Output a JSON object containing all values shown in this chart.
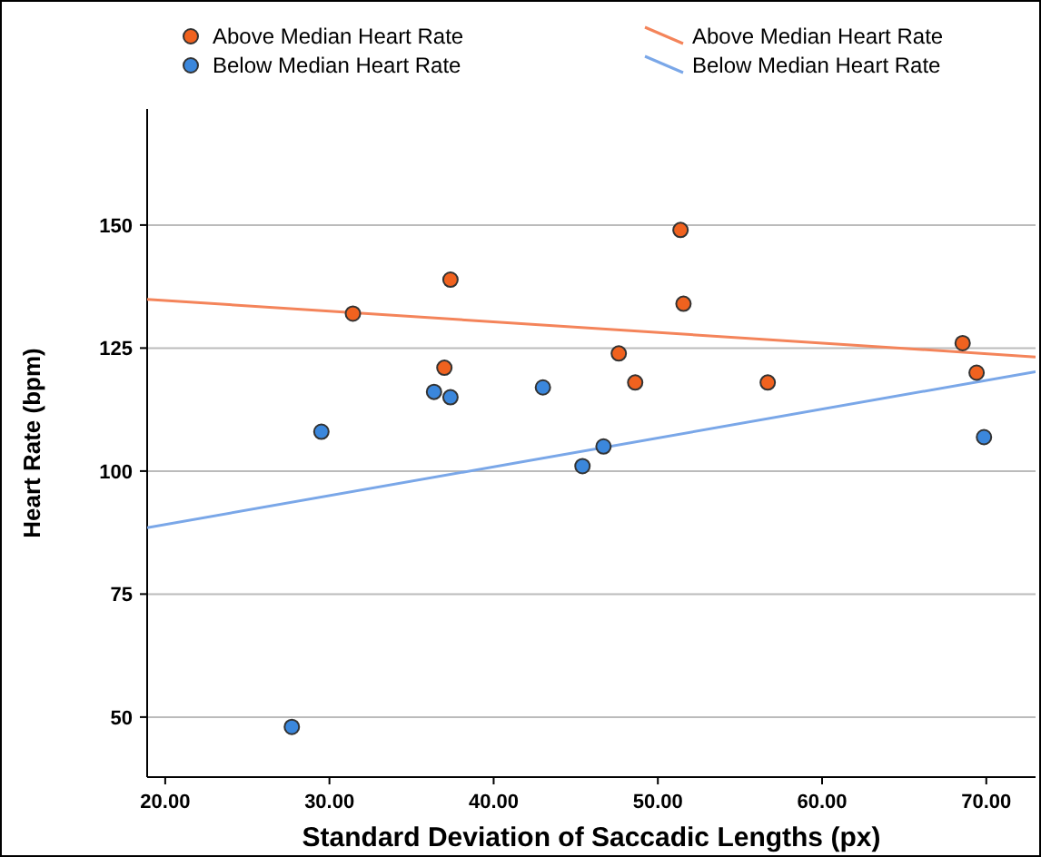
{
  "chart_data": {
    "type": "scatter",
    "xlabel": "Standard Deviation of Saccadic Lengths (px)",
    "ylabel": "Heart Rate (bpm)",
    "xlim": [
      18.9,
      73
    ],
    "xticks": [
      {
        "value": 20,
        "label": "20.00"
      },
      {
        "value": 30,
        "label": "30.00"
      },
      {
        "value": 40,
        "label": "40.00"
      },
      {
        "value": 50,
        "label": "50.00"
      },
      {
        "value": 60,
        "label": "60.00"
      },
      {
        "value": 70,
        "label": "70.00"
      }
    ],
    "ylim": [
      37.8,
      173.6
    ],
    "yticks": [
      50,
      75,
      100,
      125,
      150
    ],
    "grid": "y",
    "legend": "top",
    "marker": "circle",
    "series": [
      {
        "name": "Above Median Heart Rate",
        "color": "#f0621f",
        "x": [
          31.43,
          37.37,
          37.0,
          51.38,
          51.56,
          47.62,
          48.62,
          56.69,
          68.56,
          69.41
        ],
        "values": [
          132.0,
          138.9,
          121.0,
          149.0,
          134.0,
          123.9,
          118.0,
          118.0,
          126.0,
          120.0
        ]
      },
      {
        "name": "Below Median Heart Rate",
        "color": "#3b87dc",
        "x": [
          36.37,
          37.37,
          29.51,
          43.0,
          45.41,
          46.69,
          69.86,
          27.71
        ],
        "values": [
          116.1,
          115.0,
          108.0,
          117.0,
          101.0,
          105.0,
          106.9,
          48.0
        ]
      },
      {
        "name": "Above Median Heart Rate",
        "type": "line",
        "marker": "none",
        "color": "#f4845a",
        "x": [
          18.9,
          73
        ],
        "values": [
          134.9,
          123.2
        ]
      },
      {
        "name": "Below Median Heart Rate",
        "type": "line",
        "marker": "none",
        "color": "#7aa7e8",
        "x": [
          18.9,
          73
        ],
        "values": [
          88.5,
          120.2
        ]
      }
    ]
  }
}
